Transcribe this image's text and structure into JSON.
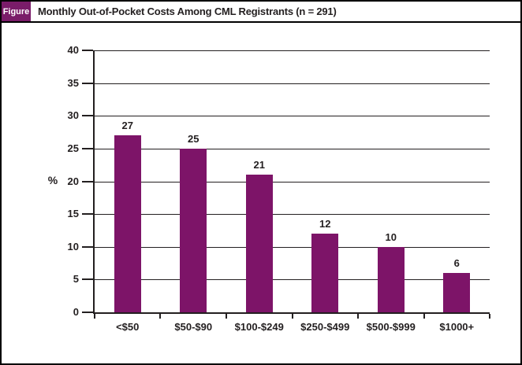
{
  "header": {
    "figure_label": "Figure",
    "title": "Monthly Out-of-Pocket Costs Among CML Registrants (n = 291)"
  },
  "colors": {
    "bar": "#7d1468",
    "figure_tab_background": "#7a1c69",
    "axis_and_text": "#231f20",
    "border": "#000000",
    "background": "#ffffff"
  },
  "chart_data": {
    "type": "bar",
    "title": "Monthly Out-of-Pocket Costs Among CML Registrants (n = 291)",
    "categories": [
      "<$50",
      "$50-$90",
      "$100-$249",
      "$250-$499",
      "$500-$999",
      "$1000+"
    ],
    "values": [
      27,
      25,
      21,
      12,
      10,
      6
    ],
    "data_labels": [
      27,
      25,
      21,
      12,
      10,
      6
    ],
    "xlabel": "",
    "ylabel": "%",
    "ylim": [
      0,
      40
    ],
    "yticks": [
      0,
      5,
      10,
      15,
      20,
      25,
      30,
      35,
      40
    ],
    "grid": true,
    "legend": "none"
  }
}
